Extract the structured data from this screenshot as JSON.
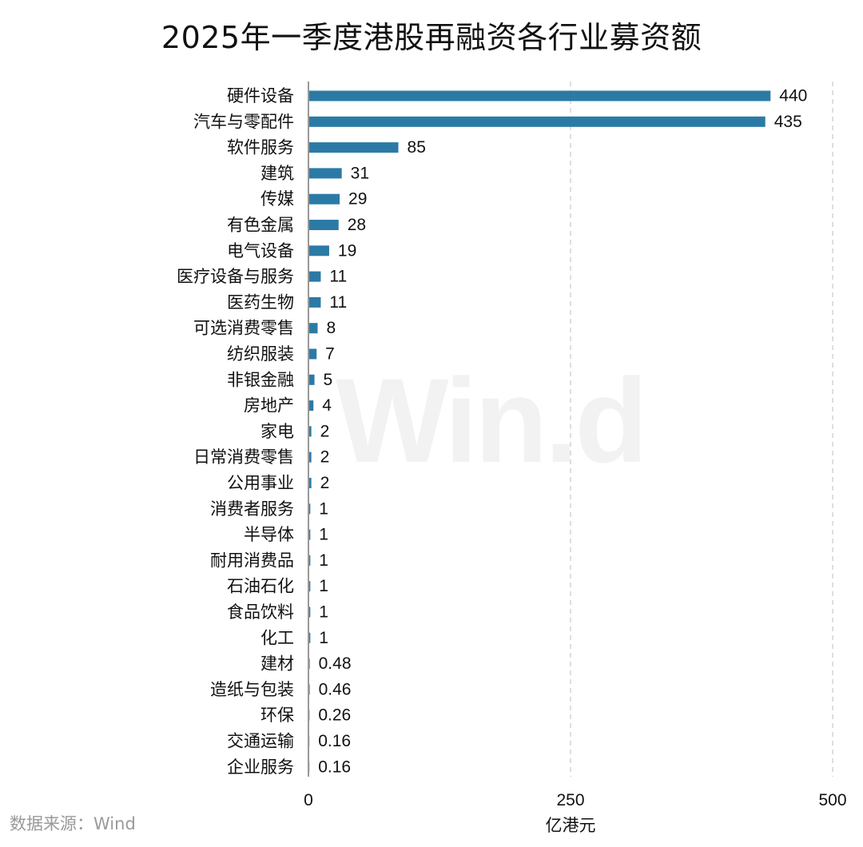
{
  "title": "2025年一季度港股再融资各行业募资额",
  "watermark": "Win.d",
  "source": "数据来源：Wind",
  "colors": {
    "bar": "#2b7aa6",
    "grid": "#c8c8c8",
    "axis": "#555555",
    "text": "#111111"
  },
  "chart_data": {
    "type": "bar",
    "orientation": "horizontal",
    "categories": [
      "硬件设备",
      "汽车与零配件",
      "软件服务",
      "建筑",
      "传媒",
      "有色金属",
      "电气设备",
      "医疗设备与服务",
      "医药生物",
      "可选消费零售",
      "纺织服装",
      "非银金融",
      "房地产",
      "家电",
      "日常消费零售",
      "公用事业",
      "消费者服务",
      "半导体",
      "耐用消费品",
      "石油石化",
      "食品饮料",
      "化工",
      "建材",
      "造纸与包装",
      "环保",
      "交通运输",
      "企业服务"
    ],
    "values": [
      440,
      435,
      85,
      31,
      29,
      28,
      19,
      11,
      11,
      8,
      7,
      5,
      4,
      2,
      2,
      2,
      1,
      1,
      1,
      1,
      1,
      1,
      0.48,
      0.46,
      0.26,
      0.16,
      0.16
    ],
    "value_labels": [
      "440",
      "435",
      "85",
      "31",
      "29",
      "28",
      "19",
      "11",
      "11",
      "8",
      "7",
      "5",
      "4",
      "2",
      "2",
      "2",
      "1",
      "1",
      "1",
      "1",
      "1",
      "1",
      "0.48",
      "0.46",
      "0.26",
      "0.16",
      "0.16"
    ],
    "xlabel": "亿港元",
    "ylabel": "",
    "xlim": [
      0,
      500
    ],
    "xticks": [
      0,
      250,
      500
    ],
    "xtick_labels": [
      "0",
      "250",
      "500"
    ],
    "grid": "vertical-dashed",
    "legend": "none"
  }
}
